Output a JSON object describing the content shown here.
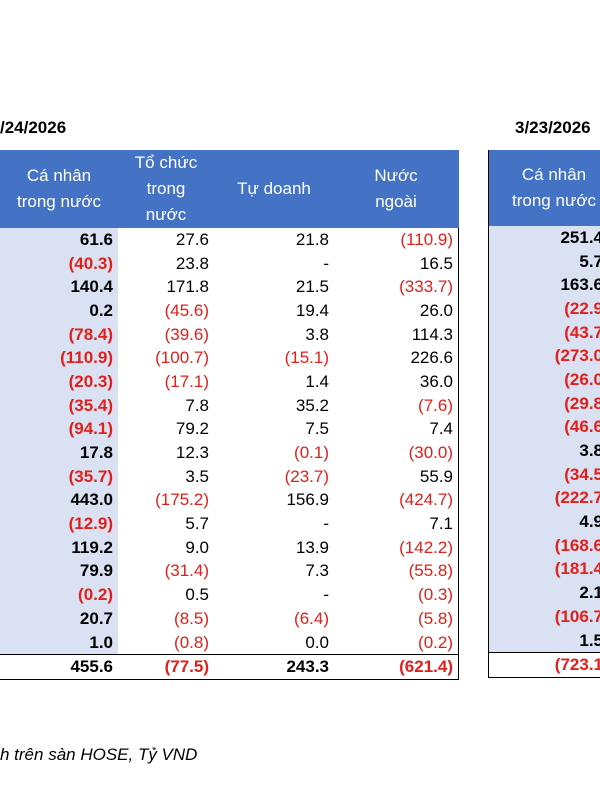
{
  "left_date": "/24/2026",
  "right_date": "3/23/2026",
  "headers": {
    "individual": [
      "Cá nhân",
      "trong nước"
    ],
    "institution": [
      "Tổ chức",
      "trong",
      "nước"
    ],
    "proprietary": [
      "Tự doanh"
    ],
    "foreign": [
      "Nước",
      "ngoài"
    ]
  },
  "right_header": [
    "Cá nhân",
    "trong nước"
  ],
  "rows": [
    [
      "61.6",
      "27.6",
      "21.8",
      "(110.9)"
    ],
    [
      "(40.3)",
      "23.8",
      "-",
      "16.5"
    ],
    [
      "140.4",
      "171.8",
      "21.5",
      "(333.7)"
    ],
    [
      "0.2",
      "(45.6)",
      "19.4",
      "26.0"
    ],
    [
      "(78.4)",
      "(39.6)",
      "3.8",
      "114.3"
    ],
    [
      "(110.9)",
      "(100.7)",
      "(15.1)",
      "226.6"
    ],
    [
      "(20.3)",
      "(17.1)",
      "1.4",
      "36.0"
    ],
    [
      "(35.4)",
      "7.8",
      "35.2",
      "(7.6)"
    ],
    [
      "(94.1)",
      "79.2",
      "7.5",
      "7.4"
    ],
    [
      "17.8",
      "12.3",
      "(0.1)",
      "(30.0)"
    ],
    [
      "(35.7)",
      "3.5",
      "(23.7)",
      "55.9"
    ],
    [
      "443.0",
      "(175.2)",
      "156.9",
      "(424.7)"
    ],
    [
      "(12.9)",
      "5.7",
      "-",
      "7.1"
    ],
    [
      "119.2",
      "9.0",
      "13.9",
      "(142.2)"
    ],
    [
      "79.9",
      "(31.4)",
      "7.3",
      "(55.8)"
    ],
    [
      "(0.2)",
      "0.5",
      "-",
      "(0.3)"
    ],
    [
      "20.7",
      "(8.5)",
      "(6.4)",
      "(5.8)"
    ],
    [
      "1.0",
      "(0.8)",
      "0.0",
      "(0.2)"
    ]
  ],
  "total": [
    "455.6",
    "(77.5)",
    "243.3",
    "(621.4)"
  ],
  "right_rows": [
    "251.4",
    "5.7",
    "163.6",
    "(22.9",
    "(43.7",
    "(273.0",
    "(26.0",
    "(29.8",
    "(46.6",
    "3.8",
    "(34.5",
    "(222.7",
    "4.9",
    "(168.6",
    "(181.4",
    "2.1",
    "(106.7",
    "1.5"
  ],
  "right_total": "(723.1",
  "footnote": "h trên sàn HOSE, Tỷ VND",
  "colors": {
    "header_bg": "#4472c4",
    "individual_col_bg": "#d9e1f2",
    "negative_text": "#e0201b"
  }
}
